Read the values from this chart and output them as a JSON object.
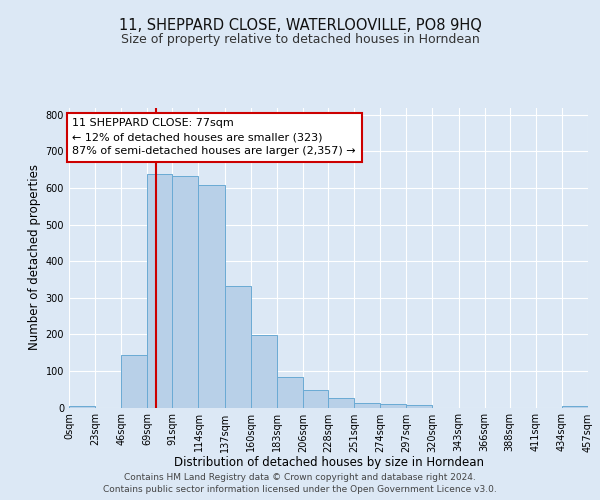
{
  "title": "11, SHEPPARD CLOSE, WATERLOOVILLE, PO8 9HQ",
  "subtitle": "Size of property relative to detached houses in Horndean",
  "xlabel": "Distribution of detached houses by size in Horndean",
  "ylabel": "Number of detached properties",
  "bin_edges": [
    0,
    23,
    46,
    69,
    91,
    114,
    137,
    160,
    183,
    206,
    228,
    251,
    274,
    297,
    320,
    343,
    366,
    388,
    411,
    434,
    457
  ],
  "bin_heights": [
    5,
    0,
    143,
    637,
    633,
    608,
    332,
    198,
    83,
    47,
    27,
    12,
    10,
    6,
    0,
    0,
    0,
    0,
    0,
    5
  ],
  "bar_color": "#b8d0e8",
  "bar_edge_color": "#6aaad4",
  "property_line_x": 77,
  "property_line_color": "#cc0000",
  "annotation_line1": "11 SHEPPARD CLOSE: 77sqm",
  "annotation_line2": "← 12% of detached houses are smaller (323)",
  "annotation_line3": "87% of semi-detached houses are larger (2,357) →",
  "annotation_box_color": "#ffffff",
  "annotation_box_edge_color": "#cc0000",
  "ylim": [
    0,
    820
  ],
  "yticks": [
    0,
    100,
    200,
    300,
    400,
    500,
    600,
    700,
    800
  ],
  "plot_bg_color": "#dce8f5",
  "fig_bg_color": "#dce8f5",
  "grid_color": "#ffffff",
  "tick_labels": [
    "0sqm",
    "23sqm",
    "46sqm",
    "69sqm",
    "91sqm",
    "114sqm",
    "137sqm",
    "160sqm",
    "183sqm",
    "206sqm",
    "228sqm",
    "251sqm",
    "274sqm",
    "297sqm",
    "320sqm",
    "343sqm",
    "366sqm",
    "388sqm",
    "411sqm",
    "434sqm",
    "457sqm"
  ],
  "footer_line1": "Contains HM Land Registry data © Crown copyright and database right 2024.",
  "footer_line2": "Contains public sector information licensed under the Open Government Licence v3.0.",
  "title_fontsize": 10.5,
  "subtitle_fontsize": 9,
  "xlabel_fontsize": 8.5,
  "ylabel_fontsize": 8.5,
  "tick_fontsize": 7,
  "annotation_fontsize": 8,
  "footer_fontsize": 6.5
}
